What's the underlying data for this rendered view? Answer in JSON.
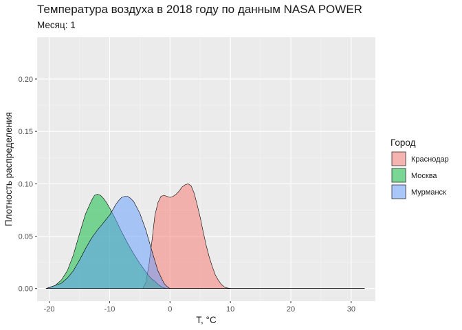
{
  "chart_data": {
    "type": "area",
    "title": "Температура воздуха в 2018 году по данным NASA POWER",
    "subtitle": "Месяц: 1",
    "xlabel": "T, °C",
    "ylabel": "Плотность распределения",
    "xlim": [
      -22,
      34
    ],
    "ylim": [
      -0.012,
      0.24
    ],
    "x_ticks": [
      -20,
      -10,
      0,
      10,
      20,
      30
    ],
    "y_ticks": [
      0.0,
      0.05,
      0.1,
      0.15,
      0.2
    ],
    "x_tick_labels": [
      "-20",
      "-10",
      "0",
      "10",
      "20",
      "30"
    ],
    "y_tick_labels": [
      "0.00",
      "0.05",
      "0.10",
      "0.15",
      "0.20"
    ],
    "grid": true,
    "legend_position": "right",
    "legend_title": "Город",
    "series": [
      {
        "name": "Краснодар",
        "color": "#F8766D",
        "x": [
          -20.5,
          -4.5,
          -4,
          -3.5,
          -3,
          -2.5,
          -2,
          -1.5,
          -1,
          -0.5,
          0,
          0.5,
          1,
          1.5,
          2,
          2.5,
          3,
          3.5,
          4,
          4.5,
          5,
          5.5,
          6,
          6.5,
          7,
          7.5,
          8,
          8.5,
          9,
          9.5,
          10,
          10.5,
          32.2
        ],
        "values": [
          0.0,
          0.0,
          0.006,
          0.022,
          0.045,
          0.07,
          0.082,
          0.088,
          0.089,
          0.088,
          0.087,
          0.088,
          0.09,
          0.093,
          0.097,
          0.099,
          0.1,
          0.098,
          0.091,
          0.08,
          0.068,
          0.054,
          0.041,
          0.03,
          0.021,
          0.013,
          0.008,
          0.004,
          0.0015,
          0.0005,
          0.0001,
          0.0,
          0.0
        ]
      },
      {
        "name": "Москва",
        "color": "#00BA38",
        "x": [
          -20.5,
          -20,
          -19,
          -18,
          -17,
          -16,
          -15,
          -14,
          -13,
          -12.5,
          -12,
          -11.5,
          -11,
          -10.5,
          -10,
          -9,
          -8,
          -7,
          -6,
          -5,
          -4,
          -3.5,
          -3,
          -2.5,
          -2,
          -1.5,
          -1,
          -0.5,
          32.2
        ],
        "values": [
          0.0,
          0.001,
          0.003,
          0.008,
          0.017,
          0.032,
          0.052,
          0.071,
          0.084,
          0.089,
          0.09,
          0.089,
          0.086,
          0.082,
          0.077,
          0.066,
          0.054,
          0.043,
          0.033,
          0.024,
          0.016,
          0.012,
          0.009,
          0.007,
          0.004,
          0.002,
          0.0007,
          0.0,
          0.0
        ]
      },
      {
        "name": "Мурманск",
        "color": "#619CFF",
        "x": [
          -20.5,
          -20,
          -19,
          -18,
          -17,
          -16,
          -15,
          -14,
          -13,
          -12,
          -11,
          -10,
          -9,
          -8.5,
          -8,
          -7.5,
          -7,
          -6.5,
          -6,
          -5,
          -4,
          -3,
          -2,
          -1,
          -0.5,
          0,
          32.2
        ],
        "values": [
          0.0,
          0.001,
          0.003,
          0.005,
          0.01,
          0.017,
          0.027,
          0.038,
          0.048,
          0.056,
          0.063,
          0.07,
          0.08,
          0.084,
          0.087,
          0.088,
          0.088,
          0.086,
          0.083,
          0.072,
          0.056,
          0.036,
          0.017,
          0.005,
          0.002,
          0.0,
          0.0
        ]
      }
    ]
  }
}
